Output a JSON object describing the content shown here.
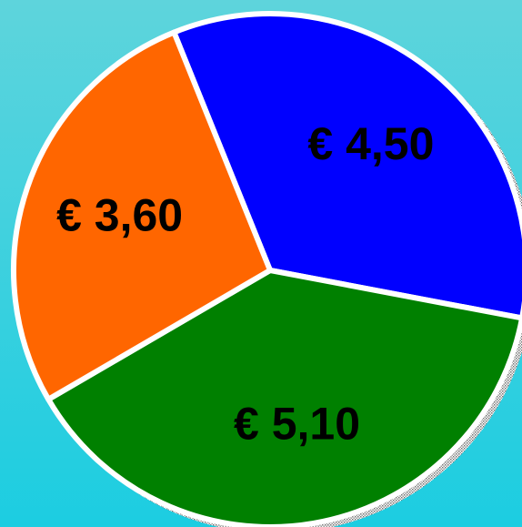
{
  "chart_data": {
    "type": "pie",
    "values": [
      4.5,
      5.1,
      3.6
    ],
    "value_labels": [
      "€ 4,50",
      "€ 5,10",
      "€ 3,60"
    ],
    "colors": [
      "#0000ff",
      "#008000",
      "#ff6600"
    ]
  }
}
